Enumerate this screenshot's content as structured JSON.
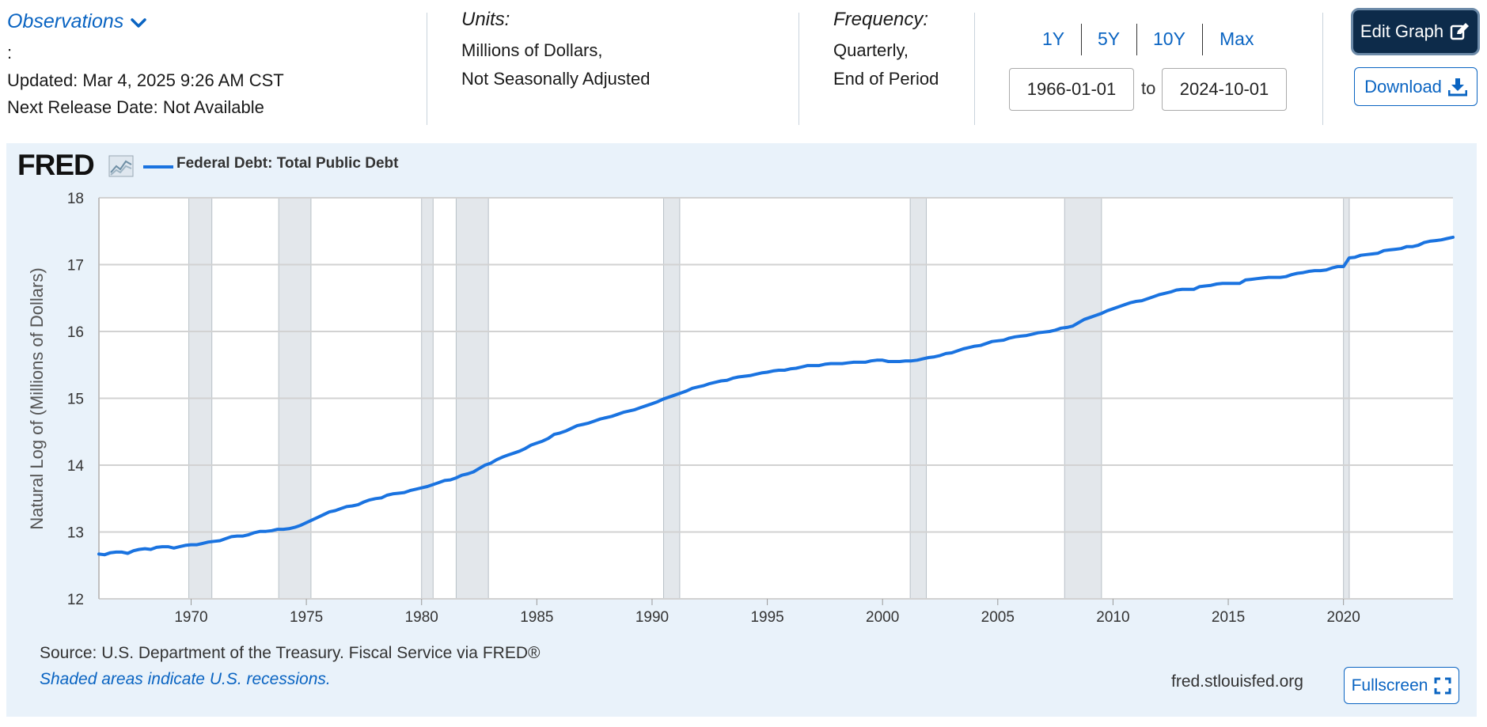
{
  "header": {
    "observations_label": "Observations",
    "colon": ":",
    "updated": "Updated: Mar 4, 2025 9:26 AM CST",
    "next_release": "Next Release Date: Not Available",
    "units_title": "Units:",
    "units_line1": "Millions of Dollars,",
    "units_line2": "Not Seasonally Adjusted",
    "frequency_title": "Frequency:",
    "frequency_line1": "Quarterly,",
    "frequency_line2": "End of Period",
    "ranges": [
      "1Y",
      "5Y",
      "10Y",
      "Max"
    ],
    "date_start": "1966-01-01",
    "date_to": "to",
    "date_end": "2024-10-01",
    "edit_label": "Edit Graph",
    "download_label": "Download"
  },
  "footer": {
    "source": "Source: U.S. Department of the Treasury. Fiscal Service via FRED®",
    "recession_note": "Shaded areas indicate U.S. recessions.",
    "site": "fred.stlouisfed.org",
    "fullscreen_label": "Fullscreen"
  },
  "logo_text": "FRED",
  "colors": {
    "accent": "#0a64c2",
    "line": "#1a73e0",
    "panel": "#e9f2fa",
    "recession": "#e3e7eb"
  },
  "chart_data": {
    "type": "line",
    "ylabel": "Natural Log of (Millions of Dollars)",
    "xlabel": "",
    "ylim": [
      12,
      18
    ],
    "xlim": [
      1966.0,
      2024.75
    ],
    "yticks": [
      12,
      13,
      14,
      15,
      16,
      17,
      18
    ],
    "xticks": [
      1970,
      1975,
      1980,
      1985,
      1990,
      1995,
      2000,
      2005,
      2010,
      2015,
      2020
    ],
    "grid": true,
    "recessions": [
      [
        1969.9,
        1970.9
      ],
      [
        1973.8,
        1975.2
      ],
      [
        1980.0,
        1980.5
      ],
      [
        1981.5,
        1982.9
      ],
      [
        1990.5,
        1991.2
      ],
      [
        2001.2,
        2001.9
      ],
      [
        2007.9,
        2009.5
      ],
      [
        2020.0,
        2020.25
      ]
    ],
    "series": [
      {
        "name": "Federal Debt: Total Public Debt",
        "points": [
          [
            1966.0,
            12.67
          ],
          [
            1966.25,
            12.66
          ],
          [
            1966.5,
            12.69
          ],
          [
            1966.75,
            12.7
          ],
          [
            1967.0,
            12.7
          ],
          [
            1967.25,
            12.68
          ],
          [
            1967.5,
            12.72
          ],
          [
            1967.75,
            12.74
          ],
          [
            1968.0,
            12.75
          ],
          [
            1968.25,
            12.74
          ],
          [
            1968.5,
            12.77
          ],
          [
            1968.75,
            12.78
          ],
          [
            1969.0,
            12.78
          ],
          [
            1969.25,
            12.76
          ],
          [
            1969.5,
            12.78
          ],
          [
            1969.75,
            12.8
          ],
          [
            1970.0,
            12.81
          ],
          [
            1970.25,
            12.81
          ],
          [
            1970.5,
            12.83
          ],
          [
            1970.75,
            12.85
          ],
          [
            1971.0,
            12.86
          ],
          [
            1971.25,
            12.87
          ],
          [
            1971.5,
            12.9
          ],
          [
            1971.75,
            12.93
          ],
          [
            1972.0,
            12.94
          ],
          [
            1972.25,
            12.94
          ],
          [
            1972.5,
            12.96
          ],
          [
            1972.75,
            12.99
          ],
          [
            1973.0,
            13.01
          ],
          [
            1973.25,
            13.01
          ],
          [
            1973.5,
            13.02
          ],
          [
            1973.75,
            13.04
          ],
          [
            1974.0,
            13.04
          ],
          [
            1974.25,
            13.05
          ],
          [
            1974.5,
            13.07
          ],
          [
            1974.75,
            13.1
          ],
          [
            1975.0,
            13.14
          ],
          [
            1975.25,
            13.18
          ],
          [
            1975.5,
            13.22
          ],
          [
            1975.75,
            13.26
          ],
          [
            1976.0,
            13.3
          ],
          [
            1976.25,
            13.32
          ],
          [
            1976.5,
            13.35
          ],
          [
            1976.75,
            13.38
          ],
          [
            1977.0,
            13.39
          ],
          [
            1977.25,
            13.41
          ],
          [
            1977.5,
            13.45
          ],
          [
            1977.75,
            13.48
          ],
          [
            1978.0,
            13.5
          ],
          [
            1978.25,
            13.51
          ],
          [
            1978.5,
            13.55
          ],
          [
            1978.75,
            13.57
          ],
          [
            1979.0,
            13.58
          ],
          [
            1979.25,
            13.59
          ],
          [
            1979.5,
            13.62
          ],
          [
            1979.75,
            13.64
          ],
          [
            1980.0,
            13.66
          ],
          [
            1980.25,
            13.68
          ],
          [
            1980.5,
            13.71
          ],
          [
            1980.75,
            13.74
          ],
          [
            1981.0,
            13.77
          ],
          [
            1981.25,
            13.78
          ],
          [
            1981.5,
            13.81
          ],
          [
            1981.75,
            13.85
          ],
          [
            1982.0,
            13.87
          ],
          [
            1982.25,
            13.9
          ],
          [
            1982.5,
            13.95
          ],
          [
            1982.75,
            14.0
          ],
          [
            1983.0,
            14.03
          ],
          [
            1983.25,
            14.08
          ],
          [
            1983.5,
            14.12
          ],
          [
            1983.75,
            14.15
          ],
          [
            1984.0,
            14.18
          ],
          [
            1984.25,
            14.21
          ],
          [
            1984.5,
            14.25
          ],
          [
            1984.75,
            14.3
          ],
          [
            1985.0,
            14.33
          ],
          [
            1985.25,
            14.36
          ],
          [
            1985.5,
            14.4
          ],
          [
            1985.75,
            14.46
          ],
          [
            1986.0,
            14.48
          ],
          [
            1986.25,
            14.51
          ],
          [
            1986.5,
            14.55
          ],
          [
            1986.75,
            14.59
          ],
          [
            1987.0,
            14.61
          ],
          [
            1987.25,
            14.63
          ],
          [
            1987.5,
            14.66
          ],
          [
            1987.75,
            14.69
          ],
          [
            1988.0,
            14.71
          ],
          [
            1988.25,
            14.73
          ],
          [
            1988.5,
            14.76
          ],
          [
            1988.75,
            14.79
          ],
          [
            1989.0,
            14.81
          ],
          [
            1989.25,
            14.83
          ],
          [
            1989.5,
            14.86
          ],
          [
            1989.75,
            14.89
          ],
          [
            1990.0,
            14.92
          ],
          [
            1990.25,
            14.95
          ],
          [
            1990.5,
            14.99
          ],
          [
            1990.75,
            15.02
          ],
          [
            1991.0,
            15.05
          ],
          [
            1991.25,
            15.08
          ],
          [
            1991.5,
            15.11
          ],
          [
            1991.75,
            15.15
          ],
          [
            1992.0,
            15.17
          ],
          [
            1992.25,
            15.19
          ],
          [
            1992.5,
            15.22
          ],
          [
            1992.75,
            15.24
          ],
          [
            1993.0,
            15.26
          ],
          [
            1993.25,
            15.27
          ],
          [
            1993.5,
            15.3
          ],
          [
            1993.75,
            15.32
          ],
          [
            1994.0,
            15.33
          ],
          [
            1994.25,
            15.34
          ],
          [
            1994.5,
            15.36
          ],
          [
            1994.75,
            15.38
          ],
          [
            1995.0,
            15.39
          ],
          [
            1995.25,
            15.41
          ],
          [
            1995.5,
            15.42
          ],
          [
            1995.75,
            15.42
          ],
          [
            1996.0,
            15.44
          ],
          [
            1996.25,
            15.45
          ],
          [
            1996.5,
            15.47
          ],
          [
            1996.75,
            15.49
          ],
          [
            1997.0,
            15.49
          ],
          [
            1997.25,
            15.49
          ],
          [
            1997.5,
            15.51
          ],
          [
            1997.75,
            15.52
          ],
          [
            1998.0,
            15.52
          ],
          [
            1998.25,
            15.52
          ],
          [
            1998.5,
            15.53
          ],
          [
            1998.75,
            15.54
          ],
          [
            1999.0,
            15.54
          ],
          [
            1999.25,
            15.54
          ],
          [
            1999.5,
            15.56
          ],
          [
            1999.75,
            15.57
          ],
          [
            2000.0,
            15.57
          ],
          [
            2000.25,
            15.55
          ],
          [
            2000.5,
            15.55
          ],
          [
            2000.75,
            15.55
          ],
          [
            2001.0,
            15.56
          ],
          [
            2001.25,
            15.56
          ],
          [
            2001.5,
            15.57
          ],
          [
            2001.75,
            15.59
          ],
          [
            2002.0,
            15.61
          ],
          [
            2002.25,
            15.62
          ],
          [
            2002.5,
            15.64
          ],
          [
            2002.75,
            15.67
          ],
          [
            2003.0,
            15.68
          ],
          [
            2003.25,
            15.71
          ],
          [
            2003.5,
            15.74
          ],
          [
            2003.75,
            15.76
          ],
          [
            2004.0,
            15.78
          ],
          [
            2004.25,
            15.79
          ],
          [
            2004.5,
            15.82
          ],
          [
            2004.75,
            15.85
          ],
          [
            2005.0,
            15.86
          ],
          [
            2005.25,
            15.87
          ],
          [
            2005.5,
            15.9
          ],
          [
            2005.75,
            15.92
          ],
          [
            2006.0,
            15.93
          ],
          [
            2006.25,
            15.94
          ],
          [
            2006.5,
            15.96
          ],
          [
            2006.75,
            15.98
          ],
          [
            2007.0,
            15.99
          ],
          [
            2007.25,
            16.0
          ],
          [
            2007.5,
            16.02
          ],
          [
            2007.75,
            16.05
          ],
          [
            2008.0,
            16.06
          ],
          [
            2008.25,
            16.08
          ],
          [
            2008.5,
            16.13
          ],
          [
            2008.75,
            16.18
          ],
          [
            2009.0,
            16.21
          ],
          [
            2009.25,
            16.24
          ],
          [
            2009.5,
            16.27
          ],
          [
            2009.75,
            16.31
          ],
          [
            2010.0,
            16.34
          ],
          [
            2010.25,
            16.37
          ],
          [
            2010.5,
            16.4
          ],
          [
            2010.75,
            16.43
          ],
          [
            2011.0,
            16.45
          ],
          [
            2011.25,
            16.46
          ],
          [
            2011.5,
            16.49
          ],
          [
            2011.75,
            16.52
          ],
          [
            2012.0,
            16.55
          ],
          [
            2012.25,
            16.57
          ],
          [
            2012.5,
            16.59
          ],
          [
            2012.75,
            16.62
          ],
          [
            2013.0,
            16.63
          ],
          [
            2013.25,
            16.63
          ],
          [
            2013.5,
            16.63
          ],
          [
            2013.75,
            16.67
          ],
          [
            2014.0,
            16.68
          ],
          [
            2014.25,
            16.69
          ],
          [
            2014.5,
            16.71
          ],
          [
            2014.75,
            16.72
          ],
          [
            2015.0,
            16.72
          ],
          [
            2015.25,
            16.72
          ],
          [
            2015.5,
            16.72
          ],
          [
            2015.75,
            16.77
          ],
          [
            2016.0,
            16.78
          ],
          [
            2016.25,
            16.79
          ],
          [
            2016.5,
            16.8
          ],
          [
            2016.75,
            16.81
          ],
          [
            2017.0,
            16.81
          ],
          [
            2017.25,
            16.81
          ],
          [
            2017.5,
            16.82
          ],
          [
            2017.75,
            16.85
          ],
          [
            2018.0,
            16.87
          ],
          [
            2018.25,
            16.88
          ],
          [
            2018.5,
            16.9
          ],
          [
            2018.75,
            16.91
          ],
          [
            2019.0,
            16.91
          ],
          [
            2019.25,
            16.92
          ],
          [
            2019.5,
            16.95
          ],
          [
            2019.75,
            16.97
          ],
          [
            2020.0,
            16.97
          ],
          [
            2020.25,
            17.1
          ],
          [
            2020.5,
            17.11
          ],
          [
            2020.75,
            17.14
          ],
          [
            2021.0,
            17.15
          ],
          [
            2021.25,
            17.16
          ],
          [
            2021.5,
            17.17
          ],
          [
            2021.75,
            17.21
          ],
          [
            2022.0,
            17.22
          ],
          [
            2022.25,
            17.23
          ],
          [
            2022.5,
            17.24
          ],
          [
            2022.75,
            17.27
          ],
          [
            2023.0,
            17.27
          ],
          [
            2023.25,
            17.29
          ],
          [
            2023.5,
            17.33
          ],
          [
            2023.75,
            17.35
          ],
          [
            2024.0,
            17.36
          ],
          [
            2024.25,
            17.37
          ],
          [
            2024.5,
            17.39
          ],
          [
            2024.75,
            17.41
          ]
        ]
      }
    ]
  }
}
